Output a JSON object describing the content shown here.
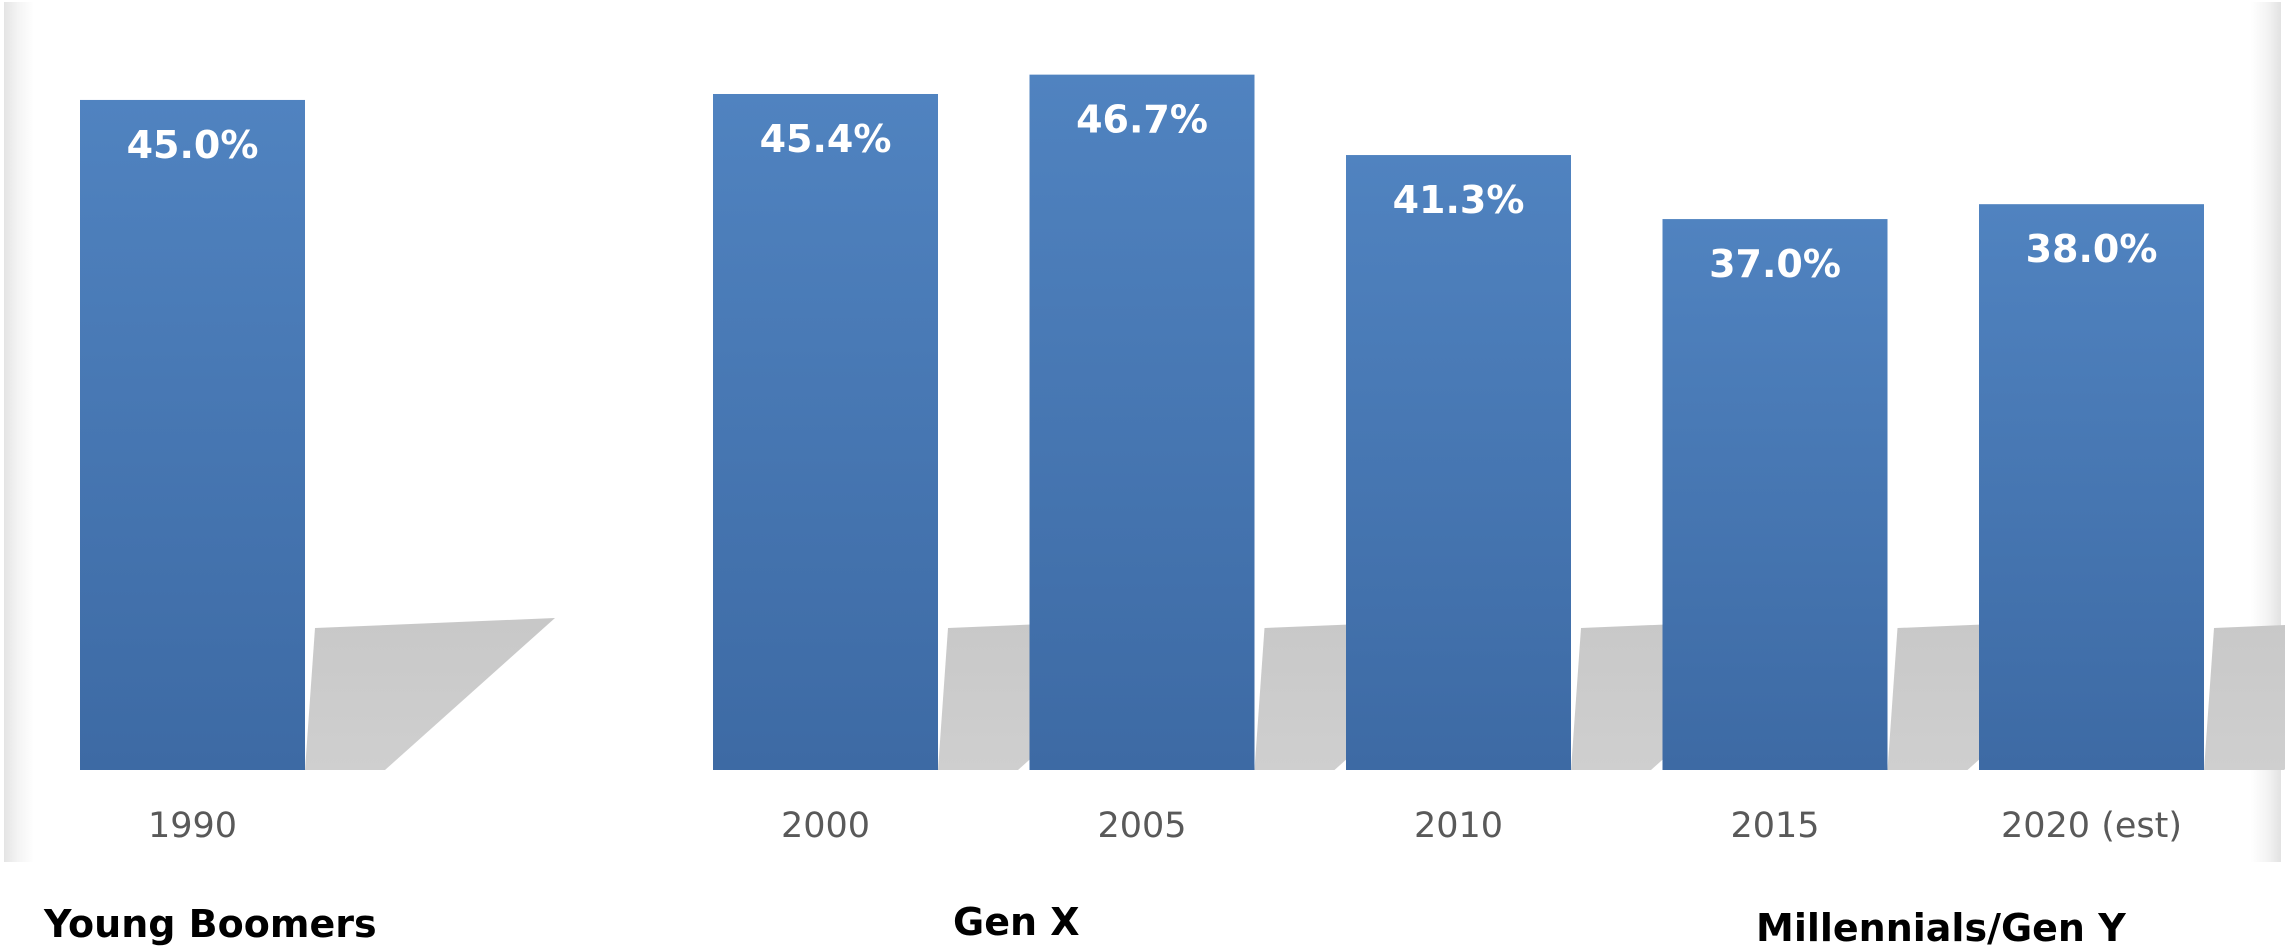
{
  "chart_data": {
    "type": "bar",
    "categories": [
      "1990",
      "",
      "2000",
      "2005",
      "2010",
      "2015",
      "2020 (est)"
    ],
    "values": [
      45.0,
      null,
      45.4,
      46.7,
      41.3,
      37.0,
      38.0
    ],
    "data_labels": [
      "45.0%",
      "",
      "45.4%",
      "46.7%",
      "41.3%",
      "37.0%",
      "38.0%"
    ],
    "title": "",
    "xlabel": "",
    "ylabel": "",
    "ylim": [
      0,
      51
    ],
    "grid": false,
    "legend": "none",
    "bar_color": "#4a7ab8",
    "label_color": "#ffffff",
    "tick_color": "#595959"
  },
  "groups": [
    {
      "label": "Young Boomers"
    },
    {
      "label": "Gen X"
    },
    {
      "label": "Millennials/Gen Y"
    }
  ]
}
